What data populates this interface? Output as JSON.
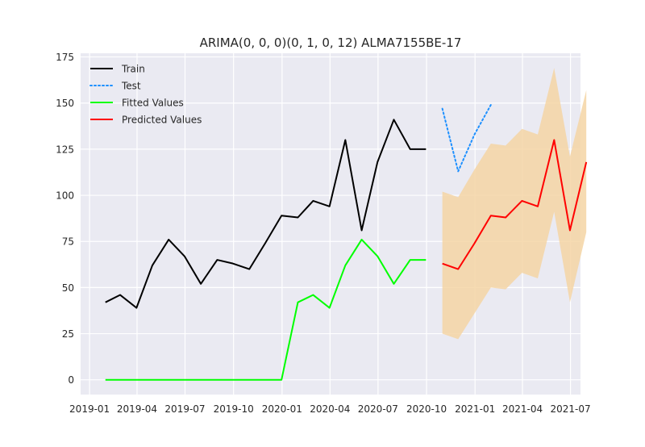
{
  "chart_data": {
    "type": "line",
    "title": "ARIMA(0, 0, 0)(0, 1, 0, 12) ALMA7155BE-17",
    "xlabel": "",
    "ylabel": "",
    "x_range": [
      "2018-12-15",
      "2021-07-20"
    ],
    "ylim": [
      -8,
      177
    ],
    "grid": true,
    "legend_position": "top-left",
    "x_ticks": [
      "2019-01",
      "2019-04",
      "2019-07",
      "2019-10",
      "2020-01",
      "2020-04",
      "2020-07",
      "2020-10",
      "2021-01",
      "2021-04",
      "2021-07"
    ],
    "y_ticks": [
      0,
      25,
      50,
      75,
      100,
      125,
      150,
      175
    ],
    "series": [
      {
        "name": "Train",
        "color": "#000000",
        "style": "solid",
        "x": [
          "2019-01-31",
          "2019-02-28",
          "2019-03-31",
          "2019-04-30",
          "2019-05-31",
          "2019-06-30",
          "2019-07-31",
          "2019-08-31",
          "2019-09-30",
          "2019-10-31",
          "2019-11-30",
          "2019-12-31",
          "2020-01-31",
          "2020-02-29",
          "2020-03-31",
          "2020-04-30",
          "2020-05-31",
          "2020-06-30",
          "2020-07-31",
          "2020-08-31",
          "2020-09-30"
        ],
        "values": [
          42,
          46,
          39,
          62,
          76,
          67,
          52,
          65,
          63,
          60,
          74,
          89,
          88,
          97,
          94,
          130,
          81,
          118,
          141,
          125,
          125
        ]
      },
      {
        "name": "Test",
        "color": "#1e90ff",
        "style": "dotted",
        "x": [
          "2020-10-31",
          "2020-11-30",
          "2020-12-31",
          "2021-01-31"
        ],
        "values": [
          147,
          113,
          133,
          149
        ]
      },
      {
        "name": "Fitted Values",
        "color": "#00ff00",
        "style": "solid",
        "x": [
          "2019-01-31",
          "2019-02-28",
          "2019-03-31",
          "2019-04-30",
          "2019-05-31",
          "2019-06-30",
          "2019-07-31",
          "2019-08-31",
          "2019-09-30",
          "2019-10-31",
          "2019-11-30",
          "2019-12-31",
          "2020-01-31",
          "2020-02-29",
          "2020-03-31",
          "2020-04-30",
          "2020-05-31",
          "2020-06-30",
          "2020-07-31",
          "2020-08-31",
          "2020-09-30"
        ],
        "values": [
          0,
          0,
          0,
          0,
          0,
          0,
          0,
          0,
          0,
          0,
          0,
          0,
          42,
          46,
          39,
          62,
          76,
          67,
          52,
          65,
          65
        ]
      },
      {
        "name": "Predicted Values",
        "color": "#ff0000",
        "style": "solid",
        "x": [
          "2020-10-31",
          "2020-11-30",
          "2020-12-31",
          "2021-01-31",
          "2021-02-28",
          "2021-03-31",
          "2021-04-30",
          "2021-05-31",
          "2021-06-30",
          "2021-07-31"
        ],
        "values": [
          63,
          60,
          74,
          89,
          88,
          97,
          94,
          130,
          81,
          118
        ]
      }
    ],
    "confidence_band": {
      "color": "#f5d5a5",
      "x": [
        "2020-10-31",
        "2020-11-30",
        "2020-12-31",
        "2021-01-31",
        "2021-02-28",
        "2021-03-31",
        "2021-04-30",
        "2021-05-31",
        "2021-06-30",
        "2021-07-31"
      ],
      "upper": [
        102,
        99,
        114,
        128,
        127,
        136,
        133,
        169,
        121,
        157
      ],
      "lower": [
        25,
        22,
        36,
        50,
        49,
        58,
        55,
        91,
        42,
        80
      ]
    }
  }
}
